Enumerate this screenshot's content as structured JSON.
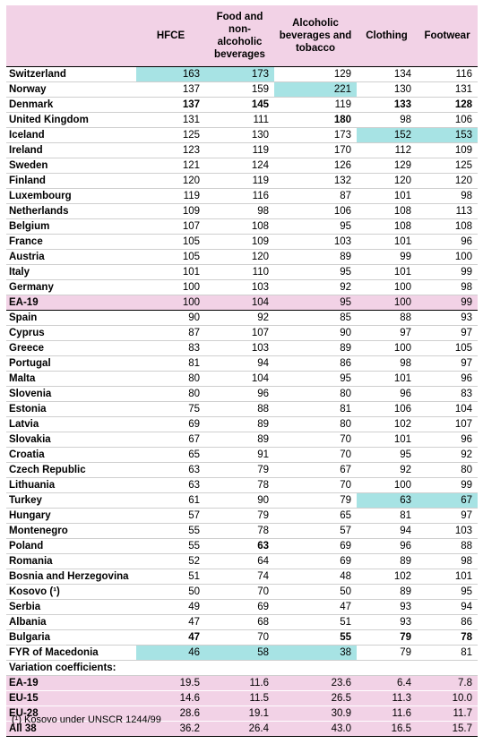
{
  "header": {
    "country": "",
    "hfce": "HFCE",
    "food": "Food and non-alcoholic beverages",
    "alcohol": "Alcoholic beverages and tobacco",
    "clothing": "Clothing",
    "footwear": "Footwear"
  },
  "rows": [
    {
      "name": "Switzerland",
      "v": [
        "163",
        "173",
        "129",
        "134",
        "116"
      ]
    },
    {
      "name": "Norway",
      "v": [
        "137",
        "159",
        "221",
        "130",
        "131"
      ]
    },
    {
      "name": "Denmark",
      "v": [
        "137",
        "145",
        "119",
        "133",
        "128"
      ]
    },
    {
      "name": "United Kingdom",
      "v": [
        "131",
        "111",
        "180",
        "98",
        "106"
      ]
    },
    {
      "name": "Iceland",
      "v": [
        "125",
        "130",
        "173",
        "152",
        "153"
      ]
    },
    {
      "name": "Ireland",
      "v": [
        "123",
        "119",
        "170",
        "112",
        "109"
      ]
    },
    {
      "name": "Sweden",
      "v": [
        "121",
        "124",
        "126",
        "129",
        "125"
      ]
    },
    {
      "name": "Finland",
      "v": [
        "120",
        "119",
        "132",
        "120",
        "120"
      ]
    },
    {
      "name": "Luxembourg",
      "v": [
        "119",
        "116",
        "87",
        "101",
        "98"
      ]
    },
    {
      "name": "Netherlands",
      "v": [
        "109",
        "98",
        "106",
        "108",
        "113"
      ]
    },
    {
      "name": "Belgium",
      "v": [
        "107",
        "108",
        "95",
        "108",
        "108"
      ]
    },
    {
      "name": "France",
      "v": [
        "105",
        "109",
        "103",
        "101",
        "96"
      ]
    },
    {
      "name": "Austria",
      "v": [
        "105",
        "120",
        "89",
        "99",
        "100"
      ]
    },
    {
      "name": "Italy",
      "v": [
        "101",
        "110",
        "95",
        "101",
        "99"
      ]
    },
    {
      "name": "Germany",
      "v": [
        "100",
        "103",
        "92",
        "100",
        "98"
      ]
    },
    {
      "name": "EA-19",
      "v": [
        "100",
        "104",
        "95",
        "100",
        "99"
      ]
    },
    {
      "name": "Spain",
      "v": [
        "90",
        "92",
        "85",
        "88",
        "93"
      ]
    },
    {
      "name": "Cyprus",
      "v": [
        "87",
        "107",
        "90",
        "97",
        "97"
      ]
    },
    {
      "name": "Greece",
      "v": [
        "83",
        "103",
        "89",
        "100",
        "105"
      ]
    },
    {
      "name": "Portugal",
      "v": [
        "81",
        "94",
        "86",
        "98",
        "97"
      ]
    },
    {
      "name": "Malta",
      "v": [
        "80",
        "104",
        "95",
        "101",
        "96"
      ]
    },
    {
      "name": "Slovenia",
      "v": [
        "80",
        "96",
        "80",
        "96",
        "83"
      ]
    },
    {
      "name": "Estonia",
      "v": [
        "75",
        "88",
        "81",
        "106",
        "104"
      ]
    },
    {
      "name": "Latvia",
      "v": [
        "69",
        "89",
        "80",
        "102",
        "107"
      ]
    },
    {
      "name": "Slovakia",
      "v": [
        "67",
        "89",
        "70",
        "101",
        "96"
      ]
    },
    {
      "name": "Croatia",
      "v": [
        "65",
        "91",
        "70",
        "95",
        "92"
      ]
    },
    {
      "name": "Czech Republic",
      "v": [
        "63",
        "79",
        "67",
        "92",
        "80"
      ]
    },
    {
      "name": "Lithuania",
      "v": [
        "63",
        "78",
        "70",
        "100",
        "99"
      ]
    },
    {
      "name": "Turkey",
      "v": [
        "61",
        "90",
        "79",
        "63",
        "67"
      ]
    },
    {
      "name": "Hungary",
      "v": [
        "57",
        "79",
        "65",
        "81",
        "97"
      ]
    },
    {
      "name": "Montenegro",
      "v": [
        "55",
        "78",
        "57",
        "94",
        "103"
      ]
    },
    {
      "name": "Poland",
      "v": [
        "55",
        "63",
        "69",
        "96",
        "88"
      ]
    },
    {
      "name": "Romania",
      "v": [
        "52",
        "64",
        "69",
        "89",
        "98"
      ]
    },
    {
      "name": "Bosnia and Herzegovina",
      "v": [
        "51",
        "74",
        "48",
        "102",
        "101"
      ]
    },
    {
      "name": "Kosovo (¹)",
      "v": [
        "50",
        "70",
        "50",
        "89",
        "95"
      ]
    },
    {
      "name": "Serbia",
      "v": [
        "49",
        "69",
        "47",
        "93",
        "94"
      ]
    },
    {
      "name": "Albania",
      "v": [
        "47",
        "68",
        "51",
        "93",
        "86"
      ]
    },
    {
      "name": "Bulgaria",
      "v": [
        "47",
        "70",
        "55",
        "79",
        "78"
      ]
    },
    {
      "name": "FYR of Macedonia",
      "v": [
        "46",
        "58",
        "38",
        "79",
        "81"
      ]
    }
  ],
  "variation": {
    "heading": "Variation coefficients:",
    "rows": [
      {
        "name": "EA-19",
        "v": [
          "19.5",
          "11.6",
          "23.6",
          "6.4",
          "7.8"
        ]
      },
      {
        "name": "EU-15",
        "v": [
          "14.6",
          "11.5",
          "26.5",
          "11.3",
          "10.0"
        ]
      },
      {
        "name": "EU-28",
        "v": [
          "28.6",
          "19.1",
          "30.9",
          "11.6",
          "11.7"
        ]
      },
      {
        "name": "All 38",
        "v": [
          "36.2",
          "26.4",
          "43.0",
          "16.5",
          "15.7"
        ]
      }
    ]
  },
  "highlight_color": "#a7e3e4",
  "accent_color": "#f2d2e6",
  "footnote": "(¹) Kosovo under UNSCR 1244/99"
}
